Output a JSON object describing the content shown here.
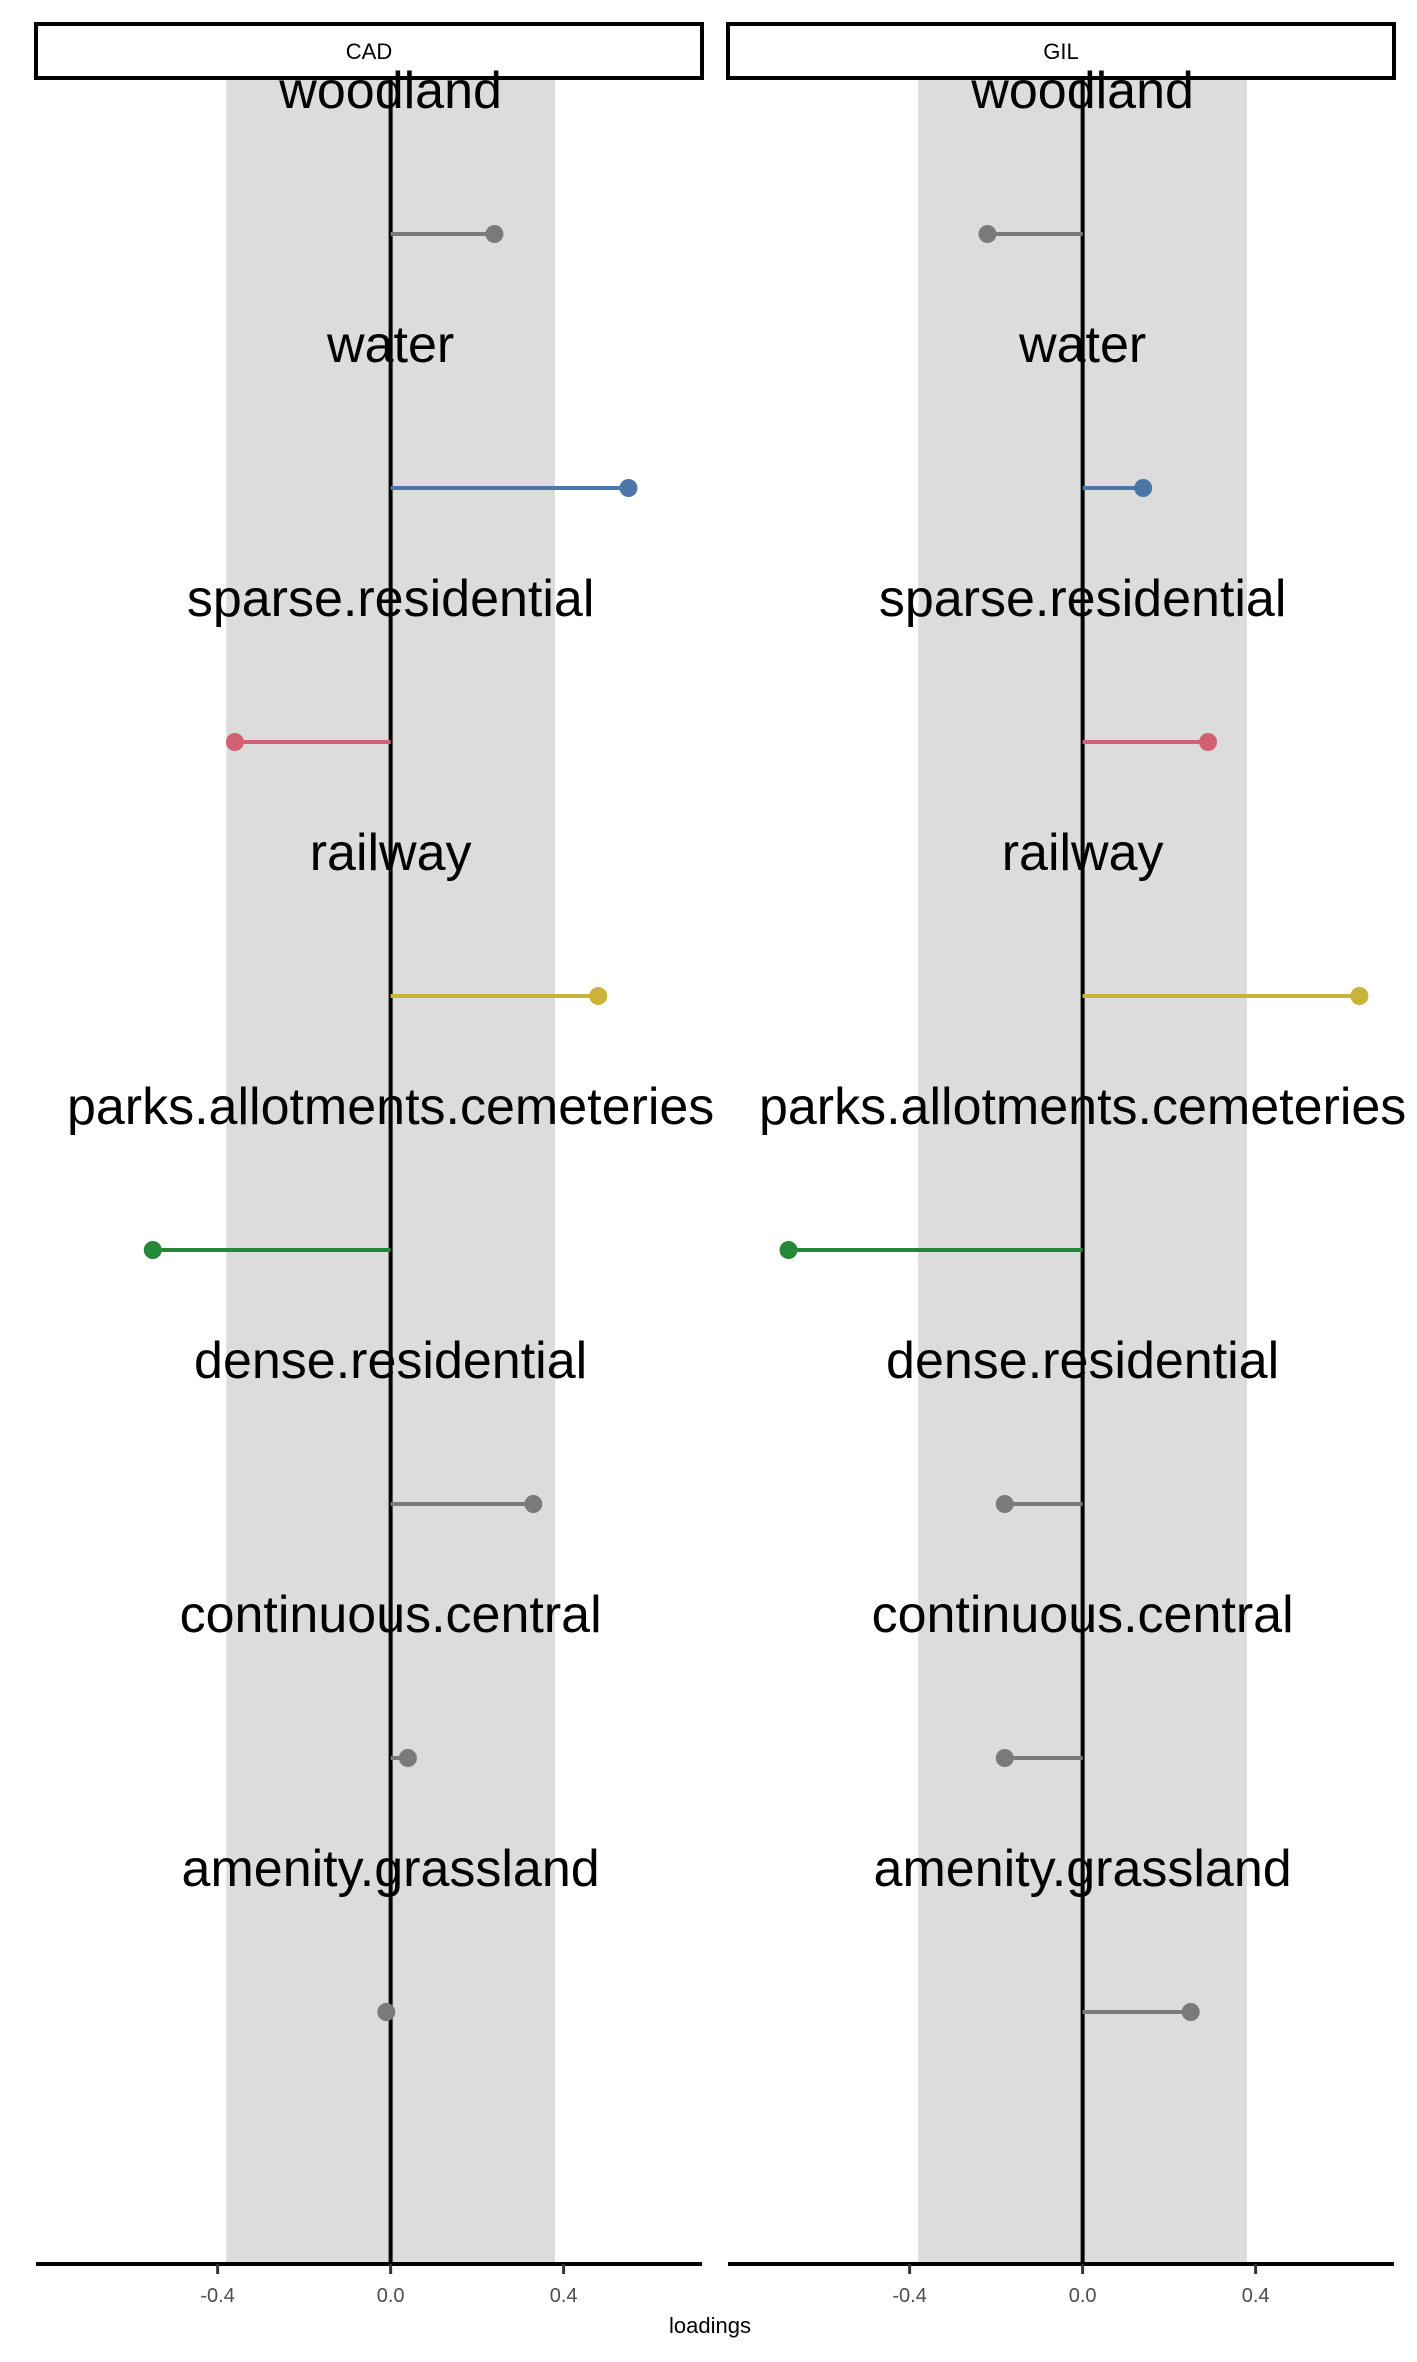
{
  "chart_data": {
    "type": "lollipop",
    "xlabel": "loadings",
    "xlim": [
      -0.82,
      0.72
    ],
    "xticks": [
      -0.4,
      0.0,
      0.4
    ],
    "xtick_labels": [
      "-0.4",
      "0.0",
      "0.4"
    ],
    "band": [
      -0.38,
      0.38
    ],
    "band_color": "#dcdcdc",
    "categories": [
      "woodland",
      "water",
      "sparse.residential",
      "railway",
      "parks.allotments.cemeteries",
      "dense.residential",
      "continuous.central",
      "amenity.grassland"
    ],
    "colors": {
      "woodland": "#7a7a7a",
      "water": "#4a77a8",
      "sparse.residential": "#d06072",
      "railway": "#c9b43a",
      "parks.allotments.cemeteries": "#248838",
      "dense.residential": "#7a7a7a",
      "continuous.central": "#7a7a7a",
      "amenity.grassland": "#7a7a7a"
    },
    "panels": [
      {
        "name": "CAD",
        "values": {
          "woodland": 0.24,
          "water": 0.55,
          "sparse.residential": -0.36,
          "railway": 0.48,
          "parks.allotments.cemeteries": -0.55,
          "dense.residential": 0.33,
          "continuous.central": 0.04,
          "amenity.grassland": -0.01
        }
      },
      {
        "name": "GIL",
        "values": {
          "woodland": -0.22,
          "water": 0.14,
          "sparse.residential": 0.29,
          "railway": 0.64,
          "parks.allotments.cemeteries": -0.68,
          "dense.residential": -0.18,
          "continuous.central": -0.18,
          "amenity.grassland": 0.25
        }
      }
    ]
  }
}
